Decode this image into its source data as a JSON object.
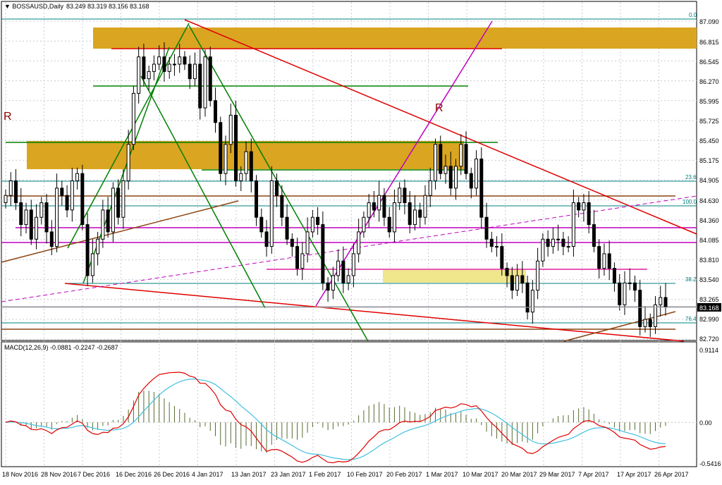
{
  "header": {
    "symbol": "BOSSAUSD,Daily",
    "ohlc": "83.249 83.319 83.156 83.168"
  },
  "price_axis": {
    "ticks": [
      "87.090",
      "86.815",
      "86.545",
      "86.270",
      "85.995",
      "85.725",
      "85.450",
      "85.175",
      "84.905",
      "84.630",
      "84.360",
      "84.085",
      "83.810",
      "83.540",
      "83.265",
      "82.990",
      "82.720"
    ],
    "current_price": "83.168"
  },
  "fib_labels": [
    "0.0",
    "23.6",
    "100.0",
    "38.2",
    "76.4"
  ],
  "annotations": [
    "R",
    "R"
  ],
  "macd": {
    "label": "MACD(12,26,9) -0.0881 -0.2247 -0.2687",
    "axis_ticks": [
      "0.9114",
      "0.00",
      "-0.5416"
    ]
  },
  "time_axis": {
    "labels": [
      "18 Nov 2016",
      "28 Nov 2016",
      "7 Dec 2016",
      "16 Dec 2016",
      "26 Dec 2016",
      "4 Jan 2017",
      "13 Jan 2017",
      "23 Jan 2017",
      "1 Feb 2017",
      "10 Feb 2017",
      "20 Feb 2017",
      "1 Mar 2017",
      "10 Mar 2017",
      "20 Mar 2017",
      "29 Mar 2017",
      "7 Apr 2017",
      "17 Apr 2017",
      "26 Apr 2017"
    ]
  },
  "colors": {
    "background": "#ffffff",
    "grid": "#c8ccd4",
    "zone": "#daa520",
    "zone_light": "#f0e68c",
    "trend_red": "#e00000",
    "trend_green": "#008000",
    "trend_magenta": "#c000c0",
    "trend_brown": "#8b4513",
    "fib_teal": "#008080",
    "macd_main": "#40c0e0",
    "macd_signal": "#e00000",
    "histogram": "#556b2f",
    "candle": "#000000"
  },
  "chart_data": {
    "type": "candlestick",
    "symbol": "BOSSAUSD",
    "timeframe": "Daily",
    "close": [
      84.7,
      84.9,
      84.6,
      84.3,
      84.5,
      84.1,
      84.4,
      84.6,
      84.2,
      84.0,
      84.8,
      84.7,
      84.5,
      84.9,
      85.0,
      84.3,
      83.6,
      83.9,
      84.1,
      84.5,
      84.2,
      84.8,
      84.4,
      84.9,
      85.4,
      86.1,
      86.6,
      86.3,
      86.4,
      86.5,
      86.6,
      86.4,
      86.5,
      86.5,
      86.6,
      86.5,
      86.3,
      86.5,
      85.9,
      86.6,
      86.0,
      85.7,
      85.0,
      85.4,
      85.8,
      84.9,
      85.0,
      85.3,
      84.9,
      84.4,
      84.2,
      84.0,
      84.9,
      84.7,
      84.4,
      84.1,
      84.0,
      83.7,
      83.9,
      84.2,
      84.4,
      84.3,
      83.5,
      83.4,
      83.6,
      83.8,
      83.5,
      83.6,
      83.9,
      84.2,
      84.4,
      84.6,
      84.5,
      84.7,
      84.4,
      84.2,
      84.6,
      84.8,
      84.6,
      84.3,
      84.5,
      84.4,
      84.7,
      84.9,
      85.4,
      85.0,
      85.1,
      84.8,
      85.1,
      85.4,
      85.0,
      84.8,
      85.2,
      84.4,
      84.1,
      84.0,
      84.0,
      83.7,
      83.6,
      83.4,
      83.6,
      83.5,
      83.1,
      83.4,
      83.8,
      84.1,
      84.0,
      84.1,
      84.1,
      84.0,
      84.0,
      84.6,
      84.5,
      84.6,
      84.3,
      84.0,
      83.7,
      83.9,
      83.7,
      83.5,
      83.2,
      83.5,
      83.5,
      83.4,
      82.9,
      83.0,
      82.9,
      83.2,
      83.3,
      83.17
    ],
    "price_range": [
      82.72,
      87.09
    ],
    "current_price": 83.168,
    "macd": {
      "params": "12,26,9",
      "main": -0.0881,
      "signal": -0.2247,
      "histogram": -0.2687,
      "range": [
        -0.5416,
        0.9114
      ]
    }
  }
}
